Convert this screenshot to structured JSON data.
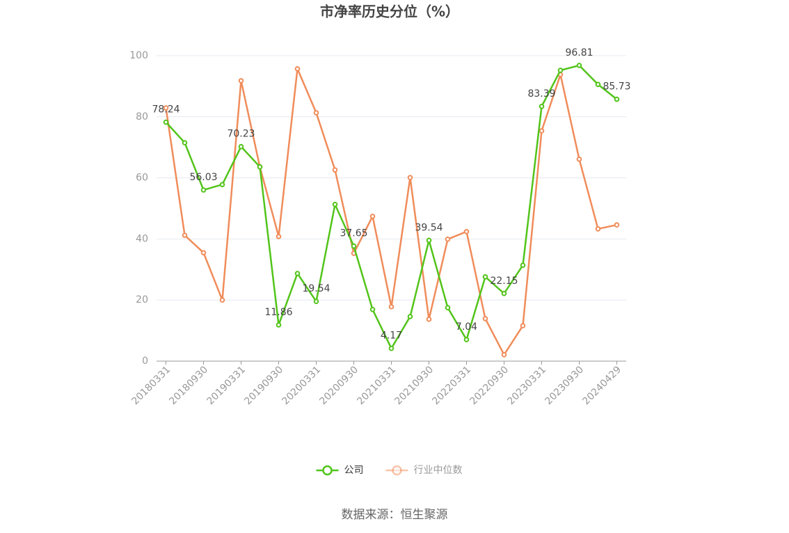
{
  "chart_data": {
    "type": "line",
    "title": "市净率历史分位（%）",
    "source": "数据来源：恒生聚源",
    "categories": [
      "20180331",
      null,
      "20180930",
      null,
      "20190331",
      null,
      "20190930",
      null,
      "20200331",
      null,
      "20200930",
      null,
      "20210331",
      null,
      "20210930",
      null,
      "20220331",
      null,
      "20220930",
      null,
      "20230331",
      null,
      "20230930",
      null,
      "20240429"
    ],
    "series": [
      {
        "name": "公司",
        "color": "#52c41a",
        "values": [
          78.24,
          71.5,
          56.03,
          57.8,
          70.23,
          63.6,
          11.86,
          28.7,
          19.54,
          51.3,
          37.65,
          16.9,
          4.17,
          14.6,
          39.54,
          17.5,
          7.04,
          27.6,
          22.15,
          31.4,
          83.39,
          95.2,
          96.81,
          90.6,
          85.73
        ]
      },
      {
        "name": "行业中位数",
        "color": "#f08c5a",
        "values": [
          82.9,
          41.2,
          35.5,
          20.0,
          91.8,
          63.6,
          40.8,
          95.7,
          81.3,
          62.6,
          35.3,
          47.4,
          17.8,
          60.1,
          13.7,
          39.9,
          42.4,
          13.9,
          2.1,
          11.6,
          75.4,
          93.8,
          66.1,
          43.3,
          44.6
        ]
      }
    ],
    "ylim": [
      0,
      100
    ],
    "yticks": [
      0,
      20,
      40,
      60,
      80,
      100
    ],
    "grid": true,
    "legend": "bottom"
  }
}
